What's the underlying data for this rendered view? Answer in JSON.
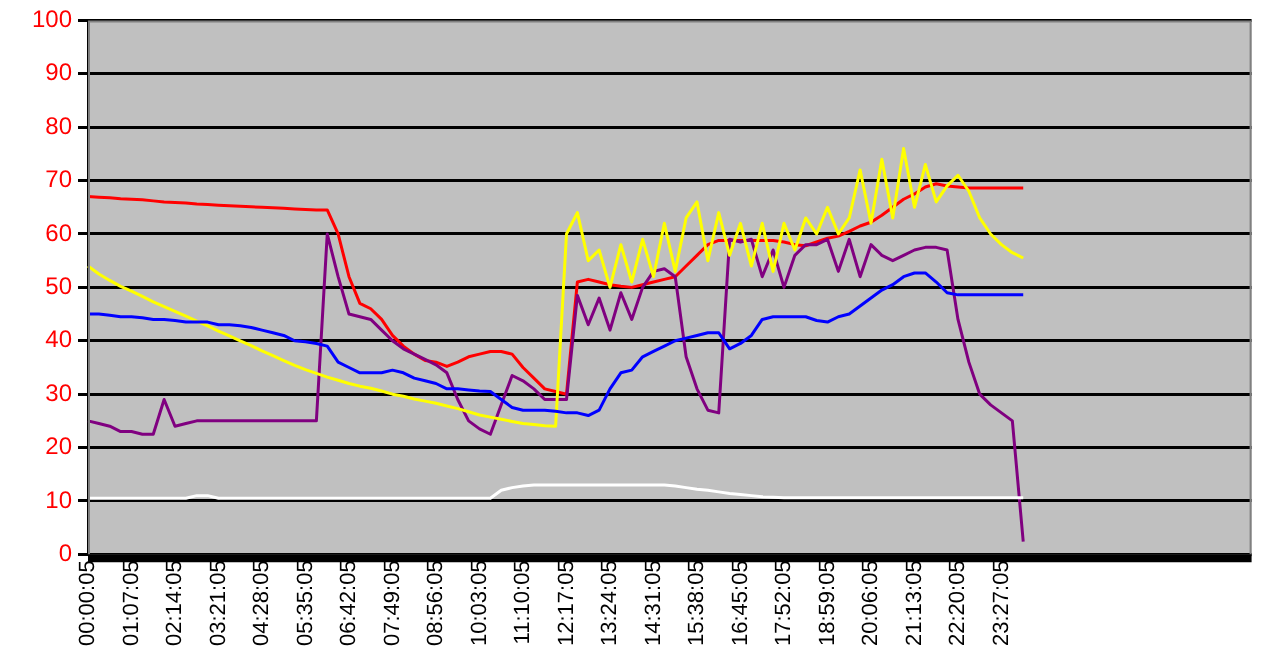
{
  "chart_data": {
    "type": "line",
    "categories": [
      "00:00:05",
      null,
      null,
      null,
      "01:07:05",
      null,
      null,
      null,
      "02:14:05",
      null,
      null,
      null,
      "03:21:05",
      null,
      null,
      null,
      "04:28:05",
      null,
      null,
      null,
      "05:35:05",
      null,
      null,
      null,
      "06:42:05",
      null,
      null,
      null,
      "07:49:05",
      null,
      null,
      null,
      "08:56:05",
      null,
      null,
      null,
      "10:03:05",
      null,
      null,
      null,
      "11:10:05",
      null,
      null,
      null,
      "12:17:05",
      null,
      null,
      null,
      "13:24:05",
      null,
      null,
      null,
      "14:31:05",
      null,
      null,
      null,
      "15:38:05",
      null,
      null,
      null,
      "16:45:05",
      null,
      null,
      null,
      "17:52:05",
      null,
      null,
      null,
      "18:59:05",
      null,
      null,
      null,
      "20:06:05",
      null,
      null,
      null,
      "21:13:05",
      null,
      null,
      null,
      "22:20:05",
      null,
      null,
      null,
      "23:27:05",
      null,
      null,
      null,
      null,
      null,
      null,
      null,
      null,
      null,
      null,
      null,
      null,
      null,
      null,
      null,
      null,
      null,
      null,
      null,
      null,
      null,
      null,
      null
    ],
    "ylim": [
      0,
      100
    ],
    "yticks": [
      0,
      10,
      20,
      30,
      40,
      50,
      60,
      70,
      80,
      90,
      100
    ],
    "grid": "y",
    "legend": false,
    "marker": "none",
    "line_style": "solid",
    "series": [
      {
        "color": "#ffffff",
        "values": [
          10.5,
          10.5,
          10.5,
          10.5,
          10.5,
          10.5,
          10.5,
          10.5,
          10.5,
          10.5,
          11,
          11,
          10.5,
          10.5,
          10.5,
          10.5,
          10.5,
          10.5,
          10.5,
          10.5,
          10.5,
          10.5,
          10.5,
          10.5,
          10.5,
          10.5,
          10.5,
          10.5,
          10.5,
          10.5,
          10.5,
          10.5,
          10.5,
          10.5,
          10.5,
          10.5,
          10.5,
          10.5,
          12,
          12.5,
          12.8,
          13,
          13,
          13,
          13,
          13,
          13,
          13,
          13,
          13,
          13,
          13,
          13,
          13,
          12.8,
          12.5,
          12.2,
          12,
          11.7,
          11.4,
          11.2,
          11,
          10.8,
          10.7,
          10.6,
          10.6,
          10.6,
          10.6,
          10.6,
          10.6,
          10.6,
          10.6,
          10.6,
          10.6,
          10.6,
          10.6,
          10.6,
          10.6,
          10.6,
          10.6,
          10.6,
          10.6,
          10.6,
          10.6,
          10.6,
          10.6,
          10.6,
          null,
          null,
          null,
          null,
          null,
          null,
          null,
          null,
          null,
          null,
          null,
          null,
          null,
          null,
          null,
          null,
          null,
          null,
          null,
          null,
          null
        ]
      },
      {
        "color": "#0000ff",
        "values": [
          45,
          45,
          44.8,
          44.5,
          44.5,
          44.3,
          44,
          44,
          43.8,
          43.5,
          43.5,
          43.5,
          43,
          43,
          42.8,
          42.5,
          42,
          41.5,
          41,
          40,
          39.8,
          39.5,
          39,
          36,
          35,
          34,
          34,
          34,
          34.5,
          34,
          33,
          32.5,
          32,
          31,
          31,
          30.8,
          30.6,
          30.5,
          29,
          27.5,
          27,
          27,
          27,
          26.8,
          26.5,
          26.5,
          26,
          27,
          31,
          34,
          34.5,
          37,
          38,
          39,
          40,
          40.5,
          41,
          41.5,
          41.5,
          38.5,
          39.5,
          41,
          44,
          44.5,
          44.5,
          44.5,
          44.5,
          43.8,
          43.5,
          44.5,
          45,
          46.5,
          48,
          49.5,
          50.5,
          52,
          52.7,
          52.7,
          51,
          49,
          48.6,
          48.6,
          48.6,
          48.6,
          48.6,
          48.6,
          48.6,
          null,
          null,
          null,
          null,
          null,
          null,
          null,
          null,
          null,
          null,
          null,
          null,
          null,
          null,
          null,
          null,
          null,
          null,
          null,
          null,
          null
        ]
      },
      {
        "color": "#ffff00",
        "values": [
          54,
          52.5,
          51.3,
          50.2,
          49.3,
          48.3,
          47.3,
          46.4,
          45.5,
          44.6,
          43.7,
          42.8,
          41.8,
          40.9,
          40,
          39.1,
          38.1,
          37.2,
          36.3,
          35.4,
          34.6,
          33.9,
          33.2,
          32.6,
          32,
          31.5,
          31.1,
          30.6,
          30,
          29.6,
          29.1,
          28.7,
          28.3,
          27.8,
          27.3,
          26.7,
          26.1,
          25.7,
          25.3,
          24.9,
          24.5,
          24.3,
          24.1,
          24,
          60,
          64,
          55,
          57,
          50,
          58,
          51,
          59,
          52,
          62,
          53,
          63,
          66,
          55,
          64,
          56,
          62,
          54,
          62,
          53,
          62,
          57,
          63,
          60,
          65,
          60,
          63,
          72,
          62,
          74,
          63,
          76,
          65,
          73,
          66,
          69,
          71,
          68,
          63,
          60,
          58,
          56.5,
          55.5,
          null,
          null,
          null,
          null,
          null,
          null,
          null,
          null,
          null,
          null,
          null,
          null,
          null,
          null,
          null,
          null,
          null,
          null,
          null,
          null,
          null
        ]
      },
      {
        "color": "#800080",
        "values": [
          25,
          24.5,
          24,
          23,
          23,
          22.5,
          22.5,
          29,
          24,
          24.5,
          25,
          25,
          25,
          25,
          25,
          25,
          25,
          25,
          25,
          25,
          25,
          25,
          60,
          52,
          45,
          44.5,
          44,
          42,
          40,
          38.5,
          37.5,
          36.5,
          35.5,
          34,
          29,
          25,
          23.5,
          22.5,
          28,
          33.5,
          32.5,
          31,
          29,
          29,
          29,
          48.5,
          43,
          48,
          42,
          49,
          44,
          50,
          53,
          53.5,
          52,
          37,
          31,
          27,
          26.5,
          59,
          58.5,
          59,
          52,
          57,
          50,
          56,
          58,
          58,
          59,
          53,
          59,
          52,
          58,
          56,
          55,
          56,
          57,
          57.5,
          57.5,
          57,
          44,
          36,
          30,
          28,
          26.5,
          25,
          2.4,
          null,
          null,
          null,
          null,
          null,
          null,
          null,
          null,
          null,
          null,
          null,
          null,
          null,
          null,
          null,
          null,
          null,
          null,
          null,
          null,
          null
        ]
      },
      {
        "color": "#ff0000",
        "values": [
          67,
          66.9,
          66.8,
          66.6,
          66.5,
          66.4,
          66.2,
          66,
          65.9,
          65.8,
          65.6,
          65.5,
          65.4,
          65.3,
          65.2,
          65.1,
          65,
          64.9,
          64.8,
          64.7,
          64.6,
          64.5,
          64.5,
          60,
          52,
          47,
          46,
          44,
          41,
          39,
          37.5,
          36.3,
          36,
          35.2,
          36,
          37,
          37.5,
          38,
          38,
          37.5,
          35,
          33,
          31,
          30.5,
          30,
          51,
          51.5,
          51,
          50.5,
          50.2,
          50,
          50.5,
          51,
          51.5,
          52,
          54,
          56,
          58,
          58.8,
          58.8,
          58.8,
          58.8,
          58.8,
          58.8,
          58.5,
          58,
          57.8,
          58.5,
          59.2,
          59.6,
          60.5,
          61.5,
          62.2,
          63.5,
          65,
          66.5,
          67.5,
          68.8,
          69.4,
          69,
          68.8,
          68.6,
          68.6,
          68.6,
          68.6,
          68.6,
          68.6,
          null,
          null,
          null,
          null,
          null,
          null,
          null,
          null,
          null,
          null,
          null,
          null,
          null,
          null,
          null,
          null,
          null,
          null,
          null,
          null,
          null
        ]
      }
    ]
  }
}
